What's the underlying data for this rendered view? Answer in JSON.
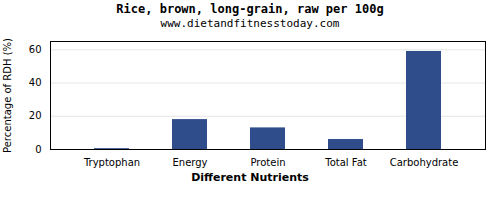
{
  "chart_data": {
    "type": "bar",
    "title": "Rice, brown, long-grain, raw per 100g",
    "subtitle": "www.dietandfitnesstoday.com",
    "xlabel": "Different Nutrients",
    "ylabel": "Percentage of RDH (%)",
    "categories": [
      "Tryptophan",
      "Energy",
      "Protein",
      "Total Fat",
      "Carbohydrate"
    ],
    "values": [
      0.5,
      18,
      13,
      6,
      59
    ],
    "color": "#2e4d8a",
    "ylim": [
      0,
      65
    ],
    "yticks": [
      0,
      20,
      40,
      60
    ],
    "grid": true
  }
}
